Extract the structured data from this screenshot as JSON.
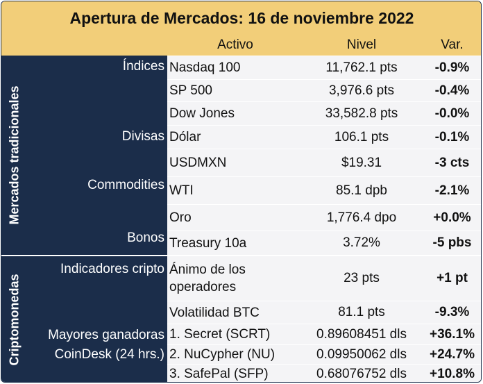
{
  "title": "Apertura de Mercados: 16 de noviembre 2022",
  "headers": {
    "asset": "Activo",
    "level": "Nivel",
    "change": "Var."
  },
  "sections": {
    "traditional": "Mercados tradicionales",
    "crypto": "Criptomonedas"
  },
  "categories": {
    "indices": "Índices",
    "currencies": "Divisas",
    "commodities": "Commodities",
    "bonds": "Bonos",
    "crypto_indicators": "Indicadores cripto",
    "gainers_line1": "Mayores ganadoras",
    "gainers_line2": "CoinDesk (24 hrs.)"
  },
  "rows": [
    {
      "asset": "Nasdaq 100",
      "level": "11,762.1 pts",
      "change": "-0.9%"
    },
    {
      "asset": "SP 500",
      "level": "3,976.6 pts",
      "change": "-0.4%"
    },
    {
      "asset": "Dow Jones",
      "level": "33,582.8 pts",
      "change": "-0.0%"
    },
    {
      "asset": "Dólar",
      "level": "106.1 pts",
      "change": "-0.1%"
    },
    {
      "asset": "USDMXN",
      "level": "$19.31",
      "change": "-3 cts"
    },
    {
      "asset": "WTI",
      "level": "85.1 dpb",
      "change": "-2.1%"
    },
    {
      "asset": "Oro",
      "level": "1,776.4 dpo",
      "change": "+0.0%"
    },
    {
      "asset": "Treasury 10a",
      "level": "3.72%",
      "change": "-5 pbs"
    },
    {
      "asset": "Ánimo de los operadores",
      "level": "23 pts",
      "change": "+1 pt"
    },
    {
      "asset": "Volatilidad BTC",
      "level": "81.1 pts",
      "change": "-9.3%"
    },
    {
      "asset": "1. Secret (SCRT)",
      "level": "0.89608451 dls",
      "change": "+36.1%"
    },
    {
      "asset": "2. NuCypher (NU)",
      "level": "0.09950062 dls",
      "change": "+24.7%"
    },
    {
      "asset": "3. SafePal (SFP)",
      "level": "0.68076752 dls",
      "change": "+10.8%"
    }
  ]
}
